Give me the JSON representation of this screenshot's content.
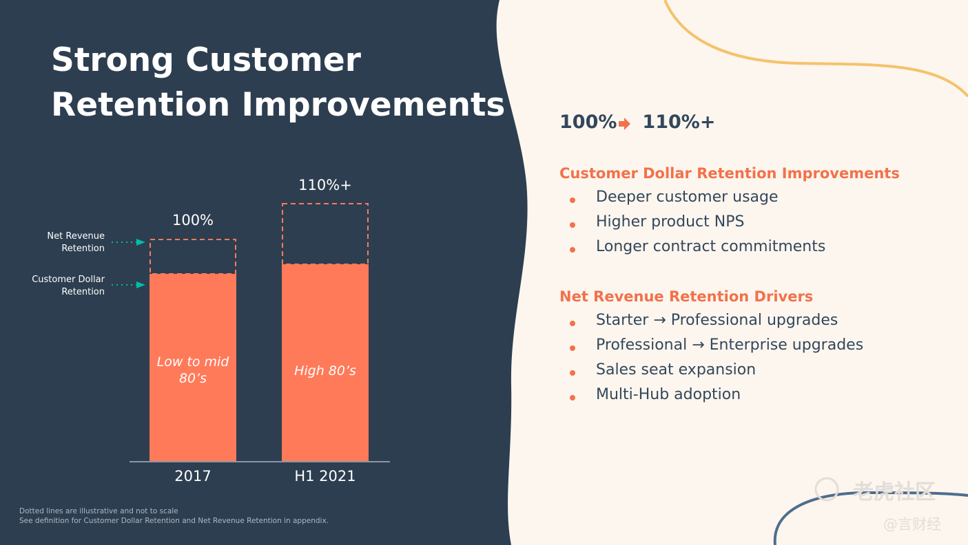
{
  "title": [
    "Strong Customer",
    "Retention Improvements"
  ],
  "chart": {
    "annotations": [
      "Net Revenue Retention",
      "Customer Dollar Retention"
    ],
    "bars": [
      {
        "top_label": "100%",
        "inner_label": "Low to mid 80’s",
        "category": "2017"
      },
      {
        "top_label": "110%+",
        "inner_label": "High 80’s",
        "category": "H1 2021"
      }
    ]
  },
  "footnotes": [
    "Dotted lines are illustrative and not to scale",
    "See definition for Customer Dollar Retention and Net Revenue Retention in appendix."
  ],
  "headline": {
    "from": "100%",
    "to": "110%+"
  },
  "sections": [
    {
      "heading": "Customer Dollar Retention Improvements",
      "bullets": [
        "Deeper customer usage",
        "Higher product NPS",
        "Longer contract commitments"
      ]
    },
    {
      "heading": "Net Revenue Retention Drivers",
      "bullets": [
        "Starter → Professional upgrades",
        "Professional → Enterprise upgrades",
        "Sales seat expansion",
        "Multi-Hub adoption"
      ]
    }
  ],
  "watermark": [
    "老虎社区",
    "@言财经"
  ]
}
